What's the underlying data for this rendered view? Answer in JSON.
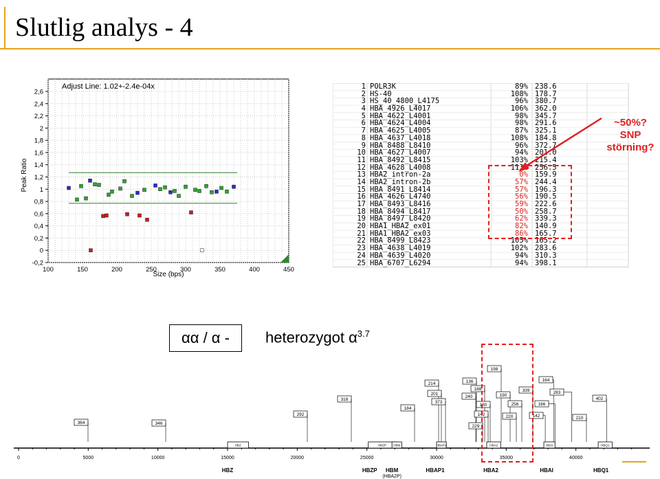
{
  "slide": {
    "title": "Slutlig analys - 4",
    "alpha_label": "αα / α -",
    "hetero_text": "heterozygot α",
    "hetero_sup": "3.7",
    "annotation_lines": [
      "~50%?",
      "SNP",
      "störning?"
    ]
  },
  "plot": {
    "title": "Adjust Line: 1.02+-2.4e-04x",
    "xlabel": "Size (bps)",
    "ylabel": "Peak Ratio",
    "xticks": [
      "100",
      "150",
      "200",
      "250",
      "300",
      "350",
      "400",
      "450"
    ],
    "yticks": [
      "2,6",
      "2,4",
      "2,2",
      "2",
      "1,8",
      "1,6",
      "1,4",
      "1,2",
      "1",
      "0,8",
      "0,6",
      "0,4",
      "0,2",
      "0",
      "-0,2"
    ],
    "xlim": [
      100,
      450
    ],
    "ylim": [
      -0.2,
      2.6
    ],
    "upper_line": 1.27,
    "lower_line": 0.77,
    "points": [
      {
        "x": 130,
        "y": 1.02,
        "c": "blue"
      },
      {
        "x": 142,
        "y": 0.83,
        "c": "green"
      },
      {
        "x": 148,
        "y": 1.05,
        "c": "green"
      },
      {
        "x": 155,
        "y": 0.85,
        "c": "green"
      },
      {
        "x": 161,
        "y": 1.14,
        "c": "blue"
      },
      {
        "x": 168,
        "y": 1.08,
        "c": "green"
      },
      {
        "x": 174,
        "y": 1.07,
        "c": "green"
      },
      {
        "x": 180,
        "y": 0.56,
        "c": "red"
      },
      {
        "x": 185,
        "y": 0.57,
        "c": "red"
      },
      {
        "x": 188,
        "y": 0.91,
        "c": "green"
      },
      {
        "x": 193,
        "y": 0.96,
        "c": "green"
      },
      {
        "x": 205,
        "y": 1.01,
        "c": "green"
      },
      {
        "x": 211,
        "y": 1.13,
        "c": "green"
      },
      {
        "x": 215,
        "y": 0.59,
        "c": "red"
      },
      {
        "x": 222,
        "y": 0.89,
        "c": "green"
      },
      {
        "x": 230,
        "y": 0.94,
        "c": "blue"
      },
      {
        "x": 233,
        "y": 0.57,
        "c": "red"
      },
      {
        "x": 240,
        "y": 0.99,
        "c": "green"
      },
      {
        "x": 244,
        "y": 0.5,
        "c": "red"
      },
      {
        "x": 256,
        "y": 1.06,
        "c": "blue"
      },
      {
        "x": 263,
        "y": 1.0,
        "c": "green"
      },
      {
        "x": 270,
        "y": 1.03,
        "c": "green"
      },
      {
        "x": 278,
        "y": 0.95,
        "c": "blue"
      },
      {
        "x": 284,
        "y": 0.97,
        "c": "green"
      },
      {
        "x": 290,
        "y": 0.89,
        "c": "green"
      },
      {
        "x": 300,
        "y": 1.04,
        "c": "green"
      },
      {
        "x": 308,
        "y": 0.62,
        "c": "red"
      },
      {
        "x": 314,
        "y": 0.99,
        "c": "green"
      },
      {
        "x": 320,
        "y": 0.97,
        "c": "green"
      },
      {
        "x": 330,
        "y": 1.05,
        "c": "green"
      },
      {
        "x": 338,
        "y": 0.95,
        "c": "green"
      },
      {
        "x": 345,
        "y": 0.96,
        "c": "blue"
      },
      {
        "x": 352,
        "y": 1.02,
        "c": "green"
      },
      {
        "x": 360,
        "y": 0.96,
        "c": "green"
      },
      {
        "x": 370,
        "y": 1.04,
        "c": "blue"
      },
      {
        "x": 162,
        "y": 0.0,
        "c": "red"
      },
      {
        "x": 324,
        "y": 0.0,
        "c": "white"
      }
    ]
  },
  "table": {
    "rows": [
      {
        "n": "1",
        "name": "POLR3K",
        "pct": "89%",
        "val": "238.6"
      },
      {
        "n": "2",
        "name": "HS-40",
        "pct": "108%",
        "val": "178.7"
      },
      {
        "n": "3",
        "name": "HS_40_4800_L4175",
        "pct": "96%",
        "val": "380.7"
      },
      {
        "n": "4",
        "name": "HBA_4926_L4017",
        "pct": "106%",
        "val": "362.0"
      },
      {
        "n": "5",
        "name": "HBA_4622_L4001",
        "pct": "98%",
        "val": "345.7"
      },
      {
        "n": "6",
        "name": "HBA_4624_L4004",
        "pct": "98%",
        "val": "291.6"
      },
      {
        "n": "7",
        "name": "HBA_4625_L4005",
        "pct": "87%",
        "val": "325.1"
      },
      {
        "n": "8",
        "name": "HBA_4637_L4018",
        "pct": "108%",
        "val": "184.8"
      },
      {
        "n": "9",
        "name": "HBA_8488_L8410",
        "pct": "96%",
        "val": "372.7"
      },
      {
        "n": "10",
        "name": "HBA_4627_L4007",
        "pct": "94%",
        "val": "201.0"
      },
      {
        "n": "11",
        "name": "HBA_8492_L8415",
        "pct": "103%",
        "val": "215.4"
      },
      {
        "n": "12",
        "name": "HBA_4628_L4008",
        "pct": "113%",
        "val": "256.5"
      },
      {
        "n": "13",
        "name": "HBA2_intron-2a",
        "pct": "0%",
        "val": "159.9",
        "red": true
      },
      {
        "n": "14",
        "name": "HBA2_intron-2b",
        "pct": "57%",
        "val": "244.4",
        "red": true
      },
      {
        "n": "15",
        "name": "HBA_8491_L8414",
        "pct": "57%",
        "val": "196.3",
        "red": true
      },
      {
        "n": "16",
        "name": "HBA_4626_L4740",
        "pct": "56%",
        "val": "190.5",
        "red": true
      },
      {
        "n": "17",
        "name": "HBA_8493_L8416",
        "pct": "59%",
        "val": "222.6",
        "red": true
      },
      {
        "n": "18",
        "name": "HBA_8494_L8417",
        "pct": "50%",
        "val": "258.7",
        "red": true
      },
      {
        "n": "19",
        "name": "HBA_8497_L8420",
        "pct": "62%",
        "val": "339.3",
        "red": true
      },
      {
        "n": "20",
        "name": "HBA1_HBA2_ex01",
        "pct": "82%",
        "val": "140.9",
        "red": true
      },
      {
        "n": "21",
        "name": "HBA1_HBA2_ex03",
        "pct": "86%",
        "val": "165.7",
        "red": true
      },
      {
        "n": "22",
        "name": "HBA_8499_L8423",
        "pct": "105%",
        "val": "165.2"
      },
      {
        "n": "23",
        "name": "HBA_4638_L4019",
        "pct": "102%",
        "val": "283.6"
      },
      {
        "n": "24",
        "name": "HBA_4639_L4020",
        "pct": "94%",
        "val": "310.3"
      },
      {
        "n": "25",
        "name": "HBA_6707_L6294",
        "pct": "94%",
        "val": "398.1"
      }
    ]
  },
  "gene_map": {
    "axis_ticks": [
      "0",
      "5000",
      "10000",
      "15000",
      "20000",
      "25000",
      "30000",
      "35000",
      "40000"
    ],
    "genes": [
      {
        "label": "HBZ",
        "sub": ""
      },
      {
        "label": "HBZP",
        "sub": ""
      },
      {
        "label": "HBM",
        "sub": "(HBA2P)"
      },
      {
        "label": "HBAP1",
        "sub": ""
      },
      {
        "label": "HBA2",
        "sub": ""
      },
      {
        "label": "HBAI",
        "sub": ""
      },
      {
        "label": "HBQ1",
        "sub": ""
      }
    ],
    "probes": [
      "364",
      "346",
      "292",
      "318",
      "184",
      "214",
      "201",
      "373",
      "136",
      "188",
      "240",
      "180",
      "142",
      "229",
      "198",
      "190",
      "256",
      "220",
      "339",
      "164",
      "166",
      "142",
      "283",
      "210",
      "402"
    ]
  }
}
